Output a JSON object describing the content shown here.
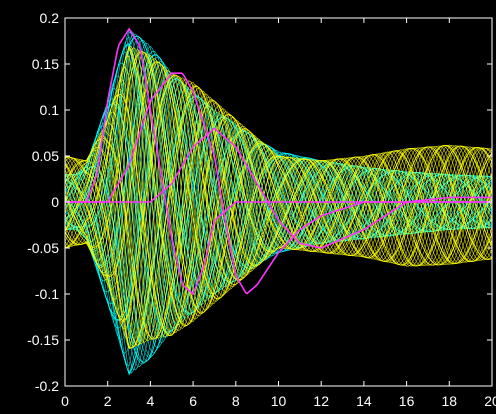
{
  "chart_data": {
    "type": "line",
    "title": "",
    "xlabel": "",
    "ylabel": "",
    "xlim": [
      0,
      20
    ],
    "ylim": [
      -0.2,
      0.2
    ],
    "x_ticks": [
      0,
      2,
      4,
      6,
      8,
      10,
      12,
      14,
      16,
      18,
      20
    ],
    "x_tick_labels": [
      "0",
      "2",
      "4",
      "6",
      "8",
      "10",
      "12",
      "14",
      "16",
      "18",
      "20"
    ],
    "y_ticks": [
      0.2,
      0.15,
      0.1,
      0.05,
      0,
      -0.05,
      -0.1,
      -0.15,
      -0.2
    ],
    "y_tick_labels": [
      "0.2",
      "0.15",
      "0.1",
      "0.05",
      "0",
      "-0.05",
      "-0.1",
      "-0.15",
      "-0.2"
    ],
    "grid": false,
    "background": "#000000",
    "axes_color": "#ffffff",
    "series": [
      {
        "color": "#00ffff",
        "style": "dense trajectory bundle",
        "envelope_upper": [
          [
            0,
            0.03
          ],
          [
            0.5,
            0.03
          ],
          [
            1,
            0.04
          ],
          [
            2,
            0.11
          ],
          [
            3,
            0.188
          ],
          [
            4,
            0.17
          ],
          [
            5,
            0.14
          ],
          [
            6,
            0.12
          ],
          [
            7,
            0.1
          ],
          [
            8,
            0.085
          ],
          [
            9,
            0.068
          ],
          [
            10,
            0.055
          ],
          [
            12,
            0.045
          ],
          [
            14,
            0.038
          ],
          [
            16,
            0.033
          ],
          [
            18,
            0.03
          ],
          [
            20,
            0.028
          ]
        ],
        "envelope_lower": [
          [
            0,
            -0.03
          ],
          [
            0.5,
            -0.03
          ],
          [
            1,
            -0.04
          ],
          [
            2,
            -0.11
          ],
          [
            3,
            -0.188
          ],
          [
            4,
            -0.17
          ],
          [
            5,
            -0.14
          ],
          [
            6,
            -0.12
          ],
          [
            7,
            -0.1
          ],
          [
            8,
            -0.085
          ],
          [
            9,
            -0.068
          ],
          [
            10,
            -0.055
          ],
          [
            12,
            -0.045
          ],
          [
            14,
            -0.04
          ],
          [
            16,
            -0.035
          ],
          [
            18,
            -0.03
          ],
          [
            20,
            -0.028
          ]
        ]
      },
      {
        "color": "#ffff00",
        "style": "dense trajectory bundle",
        "envelope_upper": [
          [
            0,
            0.05
          ],
          [
            1,
            0.045
          ],
          [
            2,
            0.09
          ],
          [
            3,
            0.17
          ],
          [
            4,
            0.16
          ],
          [
            5,
            0.14
          ],
          [
            6,
            0.13
          ],
          [
            7,
            0.11
          ],
          [
            8,
            0.09
          ],
          [
            9,
            0.07
          ],
          [
            10,
            0.05
          ],
          [
            12,
            0.045
          ],
          [
            14,
            0.05
          ],
          [
            16,
            0.058
          ],
          [
            18,
            0.062
          ],
          [
            20,
            0.058
          ]
        ],
        "envelope_lower": [
          [
            0,
            -0.05
          ],
          [
            1,
            -0.045
          ],
          [
            2,
            -0.09
          ],
          [
            3,
            -0.16
          ],
          [
            4,
            -0.15
          ],
          [
            5,
            -0.145
          ],
          [
            6,
            -0.13
          ],
          [
            7,
            -0.11
          ],
          [
            8,
            -0.09
          ],
          [
            9,
            -0.07
          ],
          [
            10,
            -0.05
          ],
          [
            12,
            -0.055
          ],
          [
            14,
            -0.06
          ],
          [
            16,
            -0.07
          ],
          [
            18,
            -0.068
          ],
          [
            20,
            -0.062
          ]
        ]
      },
      {
        "color": "#ff33ff",
        "style": "reference trajectory",
        "points": [
          [
            0,
            0
          ],
          [
            1,
            0.0
          ],
          [
            1.5,
            0.03
          ],
          [
            2,
            0.11
          ],
          [
            2.5,
            0.17
          ],
          [
            3,
            0.188
          ],
          [
            3.5,
            0.17
          ],
          [
            4,
            0.1
          ],
          [
            4.5,
            0.03
          ],
          [
            5,
            -0.04
          ],
          [
            5.5,
            -0.09
          ],
          [
            6,
            -0.1
          ],
          [
            6.5,
            -0.07
          ],
          [
            7,
            -0.02
          ],
          [
            8,
            0.0
          ],
          [
            10,
            0.0
          ],
          [
            20,
            0.0
          ]
        ]
      },
      {
        "color": "#ff33ff",
        "style": "reference trajectory",
        "points": [
          [
            0,
            0
          ],
          [
            2,
            0.0
          ],
          [
            3,
            0.04
          ],
          [
            4,
            0.11
          ],
          [
            5,
            0.14
          ],
          [
            5.5,
            0.14
          ],
          [
            6,
            0.12
          ],
          [
            7,
            0.05
          ],
          [
            7.5,
            -0.02
          ],
          [
            8,
            -0.08
          ],
          [
            8.5,
            -0.1
          ],
          [
            9,
            -0.09
          ],
          [
            10,
            -0.055
          ],
          [
            11,
            -0.03
          ],
          [
            12,
            -0.015
          ],
          [
            14,
            0.0
          ],
          [
            20,
            0.0
          ]
        ]
      },
      {
        "color": "#ff33ff",
        "style": "reference trajectory",
        "points": [
          [
            0,
            0
          ],
          [
            4,
            0.0
          ],
          [
            5,
            0.02
          ],
          [
            6,
            0.06
          ],
          [
            7,
            0.08
          ],
          [
            8,
            0.06
          ],
          [
            9,
            0.02
          ],
          [
            10,
            -0.02
          ],
          [
            11,
            -0.045
          ],
          [
            12,
            -0.05
          ],
          [
            14,
            -0.03
          ],
          [
            16,
            0.0
          ],
          [
            18,
            0.005
          ],
          [
            20,
            0.005
          ]
        ]
      }
    ]
  }
}
